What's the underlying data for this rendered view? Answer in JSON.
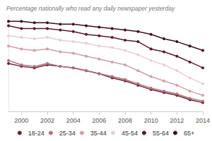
{
  "chart_data": {
    "type": "line",
    "title": "Percentage nationally who read any daily newspaper yesterday",
    "x": [
      1999,
      2000,
      2001,
      2002,
      2003,
      2004,
      2005,
      2006,
      2007,
      2008,
      2009,
      2010,
      2011,
      2012,
      2013,
      2014
    ],
    "xlim": [
      1999,
      2014
    ],
    "xticks": [
      2000,
      2002,
      2004,
      2006,
      2008,
      2010,
      2012,
      2014
    ],
    "ylim": [
      10,
      76
    ],
    "grid": false,
    "tick_labels": "x",
    "legend": "bottom",
    "marker": "circle",
    "series": [
      {
        "name": "18-24",
        "color": "#6e2433",
        "values": [
          43,
          41,
          40,
          42,
          41,
          40,
          38,
          36,
          33,
          31,
          28,
          25,
          23,
          21,
          18,
          16
        ]
      },
      {
        "name": "25-34",
        "color": "#b0707c",
        "values": [
          45,
          42,
          41,
          43,
          41,
          40,
          38,
          36,
          34,
          32,
          29,
          26,
          24,
          22,
          19,
          17
        ]
      },
      {
        "name": "35-44",
        "color": "#cf9fa8",
        "values": [
          55,
          53,
          52,
          53,
          51,
          50,
          48,
          46,
          44,
          42,
          38,
          34,
          31,
          28,
          24,
          21
        ]
      },
      {
        "name": "45-54",
        "color": "#ebcdd2",
        "values": [
          62,
          61,
          60,
          61,
          59,
          58,
          57,
          55,
          54,
          52,
          49,
          45,
          42,
          38,
          33,
          29
        ]
      },
      {
        "name": "55-64",
        "color": "#5a1a2a",
        "values": [
          69,
          67,
          67,
          67,
          66,
          65,
          63,
          62,
          61,
          59,
          58,
          53,
          51,
          48,
          44,
          40
        ]
      },
      {
        "name": "65+",
        "color": "#3d0f1a",
        "values": [
          72,
          72,
          71,
          71,
          70,
          70,
          69,
          68,
          67,
          66,
          65,
          63,
          60,
          58,
          55,
          52
        ]
      }
    ]
  }
}
